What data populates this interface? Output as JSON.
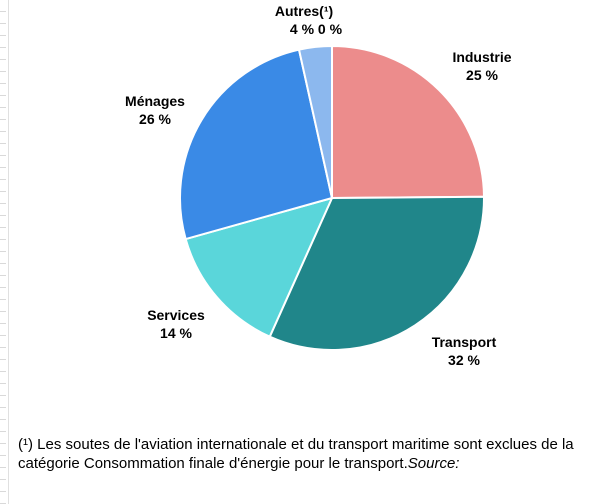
{
  "chart_data": {
    "type": "pie",
    "slices": [
      {
        "name": "Industrie",
        "label": "Industrie",
        "value_label": "25 %",
        "value": 25,
        "color": "#ec8c8c"
      },
      {
        "name": "Transport",
        "label": "Transport",
        "value_label": "32 %",
        "value": 32,
        "color": "#20868a"
      },
      {
        "name": "Services",
        "label": "Services",
        "value_label": "14 %",
        "value": 14,
        "color": "#5ad6da"
      },
      {
        "name": "Ménages",
        "label": "Ménages",
        "value_label": "26 %",
        "value": 26,
        "color": "#3a8ae6"
      },
      {
        "name": "Autres(¹)",
        "label": "Autres(¹)",
        "value_label": "4 % 0 %",
        "value": 3.5,
        "color": "#8cb8ee"
      }
    ],
    "start": "12 o'clock",
    "direction": "clockwise",
    "legend": "none"
  },
  "footnote": {
    "text": "(¹) Les soutes de l'aviation internationale et du transport maritime sont exclues de la catégorie Consommation finale d'énergie pour le transport.",
    "source_label": "Source:"
  }
}
